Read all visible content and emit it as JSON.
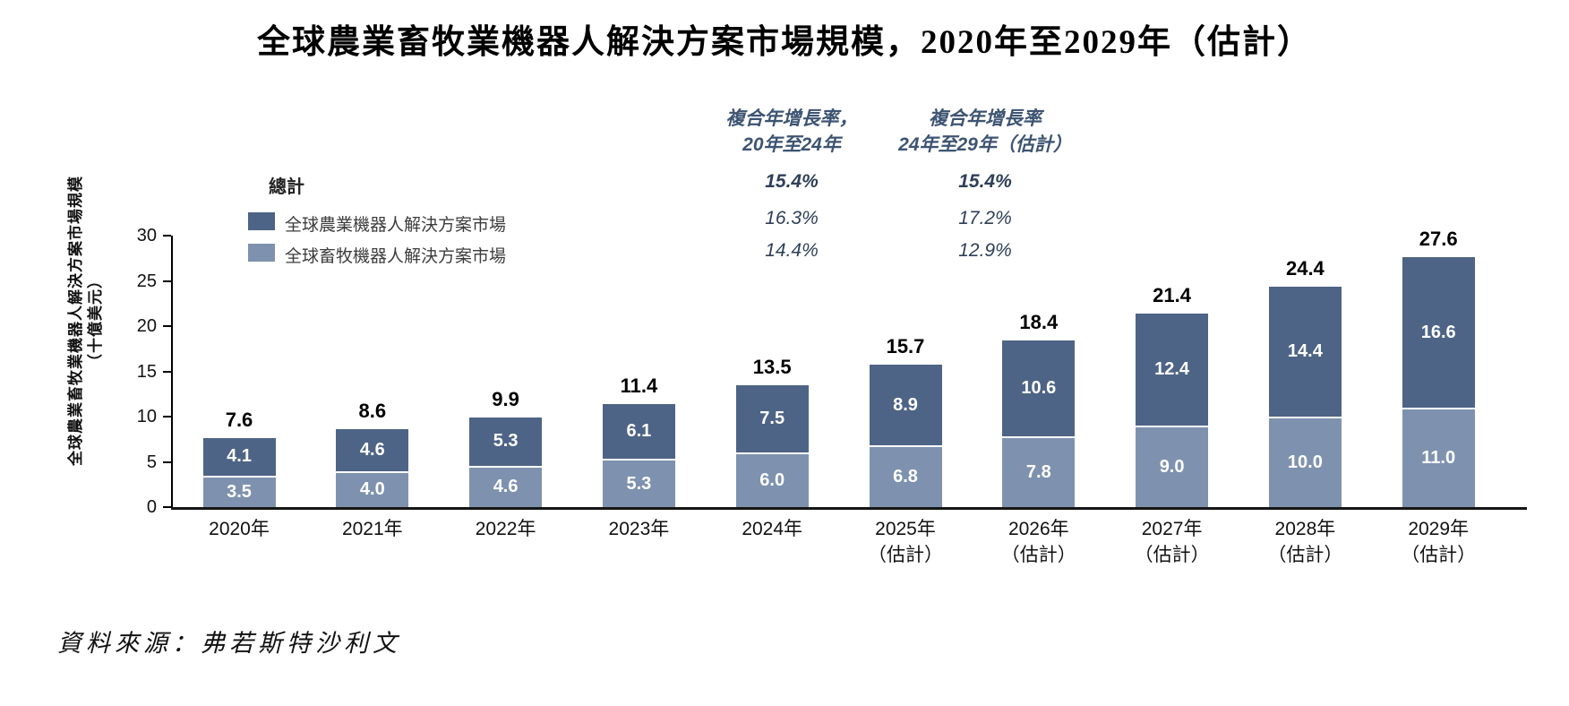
{
  "title": "全球農業畜牧業機器人解決方案市場規模，2020年至2029年（估計）",
  "colors": {
    "agriculture": "#4e6486",
    "livestock": "#7e92af",
    "annotation_header": "#3d5472",
    "annotation_value": "#2f3f57"
  },
  "cagr": {
    "columns": [
      {
        "header_line1": "複合年增長率，",
        "header_line2": "20年至24年"
      },
      {
        "header_line1": "複合年增長率",
        "header_line2": "24年至29年（估計）"
      }
    ],
    "rows": [
      {
        "col1": "15.4%",
        "col2": "15.4%"
      },
      {
        "col1": "16.3%",
        "col2": "17.2%"
      },
      {
        "col1": "14.4%",
        "col2": "12.9%"
      }
    ]
  },
  "legend": {
    "total_label": "總計",
    "items": [
      {
        "label": "全球農業機器人解決方案市場",
        "role": "agriculture"
      },
      {
        "label": "全球畜牧機器人解決方案市場",
        "role": "livestock"
      }
    ]
  },
  "y_axis": {
    "title_line1": "全球農業畜牧業機器人解決方案市場規模",
    "title_line2": "（十億美元）",
    "ticks": [
      0,
      5,
      10,
      15,
      20,
      25,
      30
    ]
  },
  "chart_data": {
    "type": "bar",
    "stacked": true,
    "title": "全球農業畜牧業機器人解決方案市場規模，2020年至2029年（估計）",
    "ylabel": "全球農業畜牧業機器人解決方案市場規模（十億美元）",
    "ylim": [
      0,
      30
    ],
    "grid": false,
    "legend_position": "upper-left",
    "categories": [
      {
        "line1": "2020年",
        "line2": ""
      },
      {
        "line1": "2021年",
        "line2": ""
      },
      {
        "line1": "2022年",
        "line2": ""
      },
      {
        "line1": "2023年",
        "line2": ""
      },
      {
        "line1": "2024年",
        "line2": ""
      },
      {
        "line1": "2025年",
        "line2": "（估計）"
      },
      {
        "line1": "2026年",
        "line2": "（估計）"
      },
      {
        "line1": "2027年",
        "line2": "（估計）"
      },
      {
        "line1": "2028年",
        "line2": "（估計）"
      },
      {
        "line1": "2029年",
        "line2": "（估計）"
      }
    ],
    "series": [
      {
        "name": "全球畜牧機器人解決方案市場",
        "role": "livestock",
        "values": [
          3.5,
          4.0,
          4.6,
          5.3,
          6.0,
          6.8,
          7.8,
          9.0,
          10.0,
          11.0
        ],
        "cagr_20_24": "14.4%",
        "cagr_24_29": "12.9%"
      },
      {
        "name": "全球農業機器人解決方案市場",
        "role": "agriculture",
        "values": [
          4.1,
          4.6,
          5.3,
          6.1,
          7.5,
          8.9,
          10.6,
          12.4,
          14.4,
          16.6
        ],
        "cagr_20_24": "16.3%",
        "cagr_24_29": "17.2%"
      }
    ],
    "totals": [
      7.6,
      8.6,
      9.9,
      11.4,
      13.5,
      15.7,
      18.4,
      21.4,
      24.4,
      27.6
    ],
    "total_cagr_20_24": "15.4%",
    "total_cagr_24_29": "15.4%"
  },
  "source": "資料來源：弗若斯特沙利文"
}
